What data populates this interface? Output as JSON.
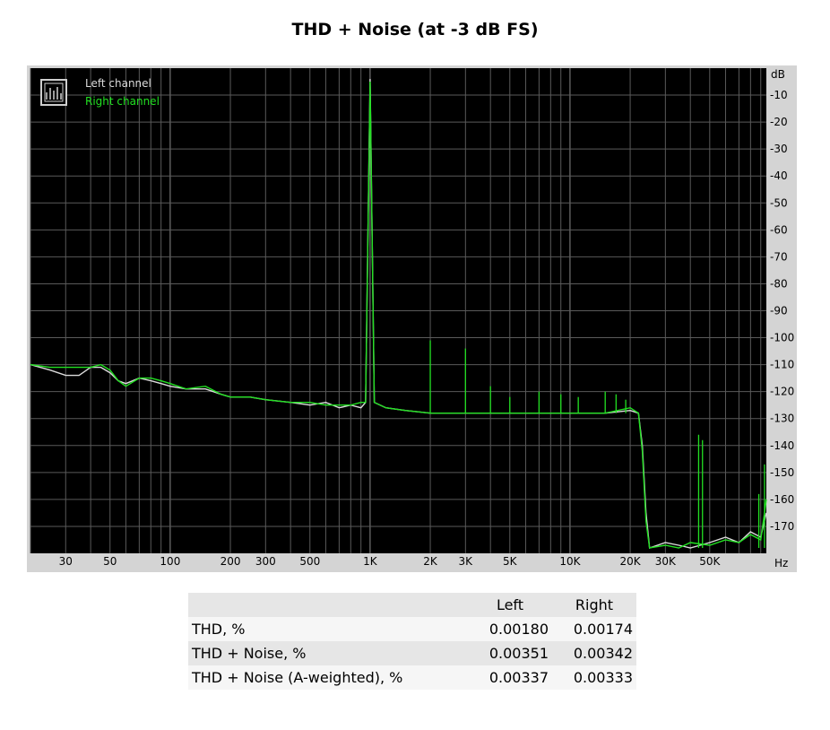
{
  "title": "THD + Noise (at -3 dB FS)",
  "chart_data": {
    "type": "line",
    "xscale": "log",
    "xlim": [
      20,
      96000
    ],
    "ylim": [
      -180,
      0
    ],
    "xticks": [
      {
        "v": 30,
        "label": "30"
      },
      {
        "v": 50,
        "label": "50"
      },
      {
        "v": 100,
        "label": "100"
      },
      {
        "v": 200,
        "label": "200"
      },
      {
        "v": 300,
        "label": "300"
      },
      {
        "v": 500,
        "label": "500"
      },
      {
        "v": 1000,
        "label": "1K"
      },
      {
        "v": 2000,
        "label": "2K"
      },
      {
        "v": 3000,
        "label": "3K"
      },
      {
        "v": 5000,
        "label": "5K"
      },
      {
        "v": 10000,
        "label": "10K"
      },
      {
        "v": 20000,
        "label": "20K"
      },
      {
        "v": 30000,
        "label": "30K"
      },
      {
        "v": 50000,
        "label": "50K"
      }
    ],
    "xunit": "Hz",
    "yunit": "dB",
    "yticks": [
      -10,
      -20,
      -30,
      -40,
      -50,
      -60,
      -70,
      -80,
      -90,
      -100,
      -110,
      -120,
      -130,
      -140,
      -150,
      -160,
      -170
    ],
    "legend_position": "top-left",
    "series": [
      {
        "name": "Left channel",
        "color": "#dcdcdc",
        "points": [
          [
            20,
            -110
          ],
          [
            25,
            -112
          ],
          [
            30,
            -114
          ],
          [
            35,
            -114
          ],
          [
            40,
            -111
          ],
          [
            45,
            -111
          ],
          [
            50,
            -113
          ],
          [
            55,
            -116
          ],
          [
            60,
            -117
          ],
          [
            70,
            -115
          ],
          [
            80,
            -116
          ],
          [
            90,
            -117
          ],
          [
            100,
            -118
          ],
          [
            120,
            -119
          ],
          [
            150,
            -119
          ],
          [
            180,
            -121
          ],
          [
            200,
            -122
          ],
          [
            250,
            -122
          ],
          [
            300,
            -123
          ],
          [
            400,
            -124
          ],
          [
            500,
            -125
          ],
          [
            600,
            -124
          ],
          [
            700,
            -126
          ],
          [
            800,
            -125
          ],
          [
            900,
            -126
          ],
          [
            950,
            -124
          ],
          [
            1000,
            -4
          ],
          [
            1050,
            -124
          ],
          [
            1200,
            -126
          ],
          [
            1500,
            -127
          ],
          [
            2000,
            -128
          ],
          [
            2500,
            -128
          ],
          [
            3000,
            -128
          ],
          [
            4000,
            -128
          ],
          [
            5000,
            -128
          ],
          [
            7000,
            -128
          ],
          [
            10000,
            -128
          ],
          [
            15000,
            -128
          ],
          [
            20000,
            -127
          ],
          [
            22000,
            -128
          ],
          [
            23000,
            -140
          ],
          [
            24000,
            -165
          ],
          [
            25000,
            -178
          ],
          [
            30000,
            -176
          ],
          [
            35000,
            -177
          ],
          [
            40000,
            -178
          ],
          [
            50000,
            -176
          ],
          [
            60000,
            -174
          ],
          [
            70000,
            -176
          ],
          [
            80000,
            -172
          ],
          [
            90000,
            -174
          ],
          [
            96000,
            -165
          ]
        ]
      },
      {
        "name": "Right channel",
        "color": "#22e022",
        "points": [
          [
            20,
            -110
          ],
          [
            25,
            -111
          ],
          [
            30,
            -111
          ],
          [
            35,
            -111
          ],
          [
            40,
            -111
          ],
          [
            45,
            -110
          ],
          [
            50,
            -112
          ],
          [
            55,
            -116
          ],
          [
            60,
            -118
          ],
          [
            70,
            -115
          ],
          [
            80,
            -115
          ],
          [
            90,
            -116
          ],
          [
            100,
            -117
          ],
          [
            120,
            -119
          ],
          [
            150,
            -118
          ],
          [
            180,
            -121
          ],
          [
            200,
            -122
          ],
          [
            250,
            -122
          ],
          [
            300,
            -123
          ],
          [
            400,
            -124
          ],
          [
            500,
            -124
          ],
          [
            600,
            -125
          ],
          [
            700,
            -125
          ],
          [
            800,
            -125
          ],
          [
            900,
            -124
          ],
          [
            950,
            -124
          ],
          [
            1000,
            -5
          ],
          [
            1050,
            -124
          ],
          [
            1200,
            -126
          ],
          [
            1500,
            -127
          ],
          [
            2000,
            -128
          ],
          [
            2500,
            -128
          ],
          [
            3000,
            -128
          ],
          [
            4000,
            -128
          ],
          [
            5000,
            -128
          ],
          [
            7000,
            -128
          ],
          [
            10000,
            -128
          ],
          [
            15000,
            -128
          ],
          [
            20000,
            -126
          ],
          [
            22000,
            -128
          ],
          [
            23000,
            -142
          ],
          [
            24000,
            -168
          ],
          [
            25000,
            -178
          ],
          [
            30000,
            -177
          ],
          [
            35000,
            -178
          ],
          [
            40000,
            -176
          ],
          [
            50000,
            -177
          ],
          [
            60000,
            -175
          ],
          [
            70000,
            -176
          ],
          [
            80000,
            -173
          ],
          [
            90000,
            -175
          ],
          [
            96000,
            -160
          ]
        ]
      }
    ],
    "harmonics": [
      {
        "f": 2000,
        "db": -101
      },
      {
        "f": 3000,
        "db": -104
      },
      {
        "f": 4000,
        "db": -118
      },
      {
        "f": 5000,
        "db": -122
      },
      {
        "f": 7000,
        "db": -120
      },
      {
        "f": 9000,
        "db": -121
      },
      {
        "f": 11000,
        "db": -122
      },
      {
        "f": 15000,
        "db": -120
      },
      {
        "f": 17000,
        "db": -121
      },
      {
        "f": 19000,
        "db": -123
      },
      {
        "f": 44000,
        "db": -136
      },
      {
        "f": 46000,
        "db": -138
      },
      {
        "f": 88000,
        "db": -158
      },
      {
        "f": 94000,
        "db": -147
      }
    ]
  },
  "results": {
    "headers": [
      "",
      "Left",
      "Right"
    ],
    "rows": [
      {
        "label": "THD, %",
        "left": "0.00180",
        "right": "0.00174"
      },
      {
        "label": "THD + Noise, %",
        "left": "0.00351",
        "right": "0.00342"
      },
      {
        "label": "THD + Noise (A-weighted), %",
        "left": "0.00337",
        "right": "0.00333"
      }
    ]
  }
}
